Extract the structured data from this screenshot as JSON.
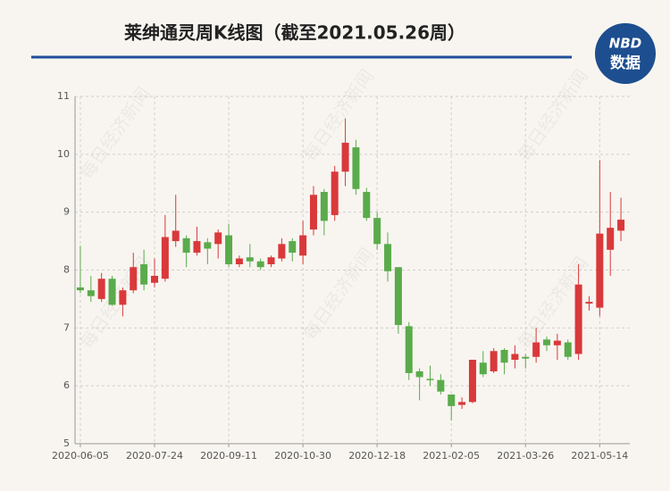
{
  "chart_data": {
    "type": "candlestick",
    "title": "莱绅通灵周K线图（截至2021.05.26周）",
    "watermark": "每日经济新闻",
    "logo": {
      "top": "NBD",
      "bottom": "数据"
    },
    "categories": [
      "2020-06-05",
      null,
      null,
      null,
      null,
      null,
      null,
      "2020-07-24",
      null,
      null,
      null,
      null,
      null,
      null,
      "2020-09-11",
      null,
      null,
      null,
      null,
      null,
      null,
      "2020-10-30",
      null,
      null,
      null,
      null,
      null,
      null,
      "2020-12-18",
      null,
      null,
      null,
      null,
      null,
      null,
      "2021-02-05",
      null,
      null,
      null,
      null,
      null,
      null,
      "2021-03-26",
      null,
      null,
      null,
      null,
      null,
      null,
      "2021-05-14",
      null,
      null
    ],
    "open": [
      7.7,
      7.65,
      7.5,
      7.85,
      7.4,
      7.65,
      8.1,
      7.78,
      7.85,
      8.5,
      8.55,
      8.3,
      8.48,
      8.45,
      8.6,
      8.1,
      8.22,
      8.15,
      8.1,
      8.2,
      8.5,
      8.25,
      8.7,
      9.35,
      8.95,
      9.7,
      10.12,
      9.35,
      8.9,
      8.45,
      8.05,
      7.03,
      6.25,
      6.12,
      6.1,
      5.85,
      5.67,
      5.72,
      6.4,
      6.25,
      6.62,
      6.45,
      6.5,
      6.5,
      6.8,
      6.7,
      6.75,
      6.55,
      7.42,
      7.35,
      8.35,
      8.68
    ],
    "high": [
      8.42,
      7.9,
      7.95,
      7.9,
      7.7,
      8.3,
      8.35,
      8.2,
      8.95,
      9.3,
      8.6,
      8.75,
      8.55,
      8.7,
      8.8,
      8.25,
      8.45,
      8.2,
      8.25,
      8.55,
      8.55,
      8.85,
      9.45,
      9.4,
      9.8,
      10.62,
      10.25,
      9.42,
      9.0,
      8.65,
      8.05,
      7.1,
      6.3,
      6.35,
      6.2,
      5.85,
      5.8,
      6.45,
      6.6,
      6.65,
      6.65,
      6.7,
      6.55,
      7.0,
      6.85,
      6.9,
      6.8,
      8.1,
      7.55,
      9.9,
      9.35,
      9.25
    ],
    "low": [
      7.6,
      7.45,
      7.45,
      7.38,
      7.2,
      7.6,
      7.65,
      7.7,
      7.8,
      8.4,
      8.05,
      8.25,
      8.1,
      8.2,
      8.05,
      8.05,
      8.05,
      8.0,
      8.05,
      8.15,
      8.15,
      8.1,
      8.6,
      8.6,
      8.85,
      9.45,
      9.3,
      8.85,
      8.35,
      7.8,
      6.9,
      6.1,
      5.75,
      6.0,
      5.85,
      5.4,
      5.6,
      5.7,
      6.15,
      6.22,
      6.2,
      6.3,
      6.3,
      6.4,
      6.6,
      6.45,
      6.45,
      6.45,
      7.3,
      7.2,
      7.9,
      8.5
    ],
    "close": [
      7.65,
      7.55,
      7.85,
      7.4,
      7.65,
      8.05,
      7.75,
      7.9,
      8.57,
      8.68,
      8.3,
      8.5,
      8.37,
      8.65,
      8.1,
      8.2,
      8.15,
      8.05,
      8.22,
      8.45,
      8.3,
      8.6,
      9.3,
      8.85,
      9.7,
      10.2,
      9.4,
      8.9,
      8.45,
      7.98,
      7.05,
      6.22,
      6.15,
      6.1,
      5.9,
      5.65,
      5.72,
      6.45,
      6.2,
      6.6,
      6.4,
      6.55,
      6.47,
      6.75,
      6.7,
      6.78,
      6.5,
      7.75,
      7.45,
      8.63,
      8.73,
      8.87
    ],
    "up_color": "#d9393b",
    "down_color": "#5aab4b",
    "ylim": [
      5,
      11
    ],
    "yticks": [
      5,
      6,
      7,
      8,
      9,
      10,
      11
    ],
    "grid": true
  }
}
